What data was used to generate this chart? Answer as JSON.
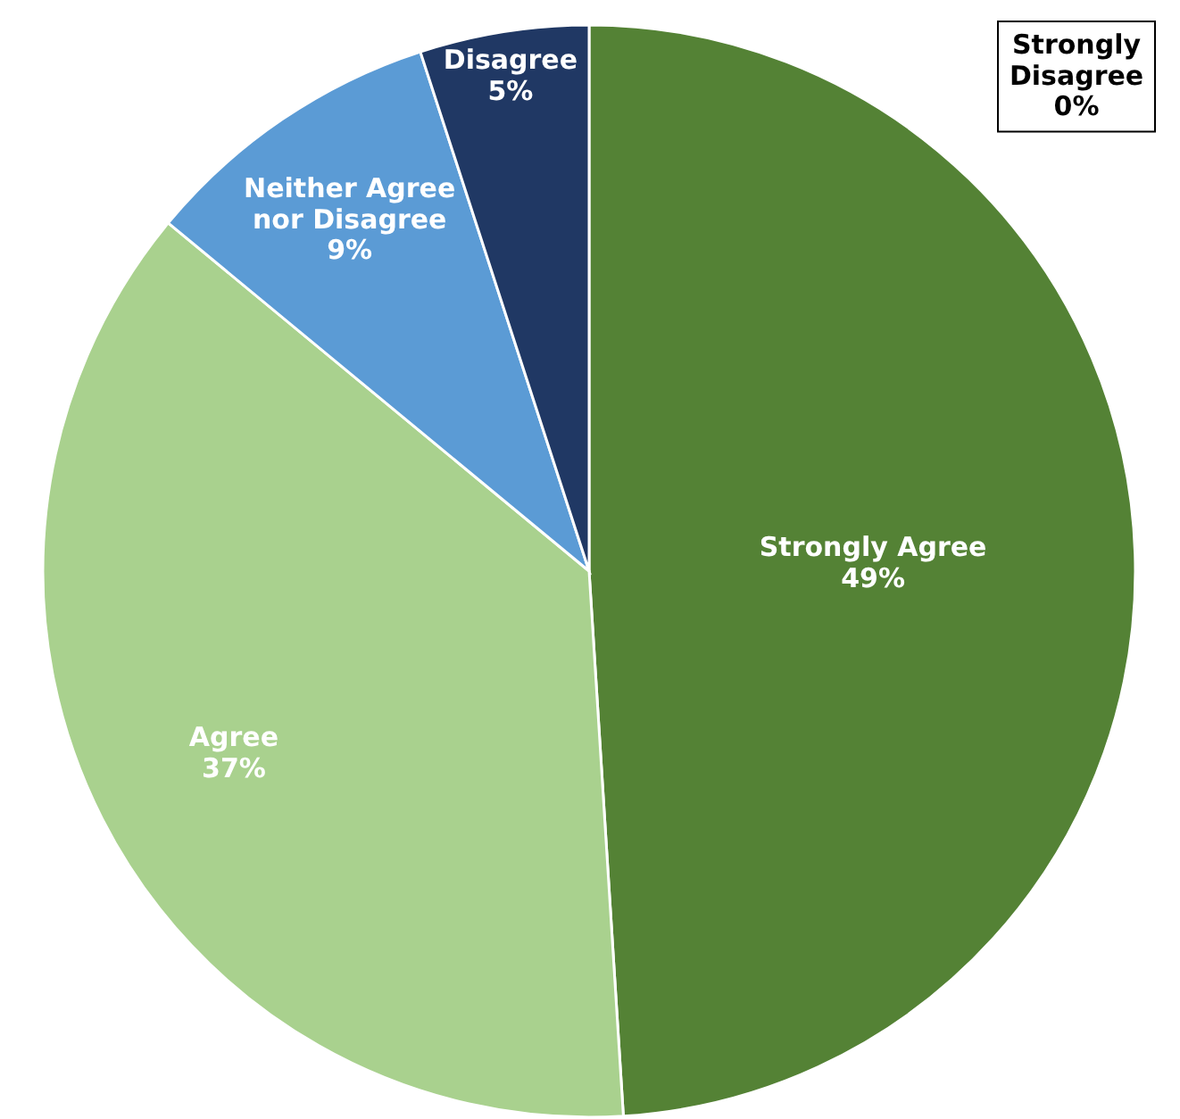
{
  "chart_data": {
    "type": "pie",
    "categories": [
      "Strongly Agree",
      "Agree",
      "Neither Agree nor Disagree",
      "Disagree",
      "Strongly Disagree"
    ],
    "values": [
      49,
      37,
      9,
      5,
      0
    ],
    "colors": [
      "#548235",
      "#a9d18e",
      "#5b9bd5",
      "#203864",
      "#ffffff"
    ],
    "value_labels": [
      "49%",
      "37%",
      "9%",
      "5%",
      "0%"
    ]
  }
}
